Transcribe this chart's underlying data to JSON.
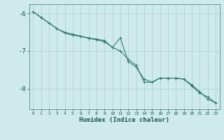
{
  "xlabel": "Humidex (Indice chaleur)",
  "bg_color": "#ceeaea",
  "line_color": "#2e7d72",
  "grid_color": "#aed4d4",
  "ylim": [
    -8.55,
    -5.75
  ],
  "xlim": [
    -0.5,
    23.5
  ],
  "yticks": [
    -8,
    -7,
    -6
  ],
  "xticks": [
    0,
    1,
    2,
    3,
    4,
    5,
    6,
    7,
    8,
    9,
    10,
    11,
    12,
    13,
    14,
    15,
    16,
    17,
    18,
    19,
    20,
    21,
    22,
    23
  ],
  "series1_x": [
    0,
    1,
    2,
    3,
    4,
    5,
    6,
    7,
    8,
    9,
    10,
    11,
    12,
    13,
    14,
    15,
    16,
    17,
    18,
    19,
    20,
    21,
    22,
    23
  ],
  "series1_y": [
    -5.95,
    -6.1,
    -6.25,
    -6.4,
    -6.5,
    -6.55,
    -6.6,
    -6.65,
    -6.68,
    -6.72,
    -6.9,
    -6.65,
    -7.28,
    -7.43,
    -7.75,
    -7.83,
    -7.72,
    -7.72,
    -7.72,
    -7.75,
    -7.9,
    -8.08,
    -8.28,
    -8.38
  ],
  "series2_x": [
    0,
    1,
    2,
    3,
    4,
    5,
    6,
    7,
    8,
    9,
    10,
    11,
    12,
    13,
    14,
    15,
    16,
    17,
    18,
    19,
    20,
    21,
    22,
    23
  ],
  "series2_y": [
    -5.95,
    -6.1,
    -6.25,
    -6.4,
    -6.52,
    -6.58,
    -6.61,
    -6.66,
    -6.7,
    -6.75,
    -6.9,
    -7.0,
    -7.22,
    -7.38,
    -7.83,
    -7.83,
    -7.72,
    -7.72,
    -7.72,
    -7.75,
    -7.93,
    -8.12,
    -8.22,
    -8.38
  ],
  "markersize": 3,
  "linewidth": 0.8
}
